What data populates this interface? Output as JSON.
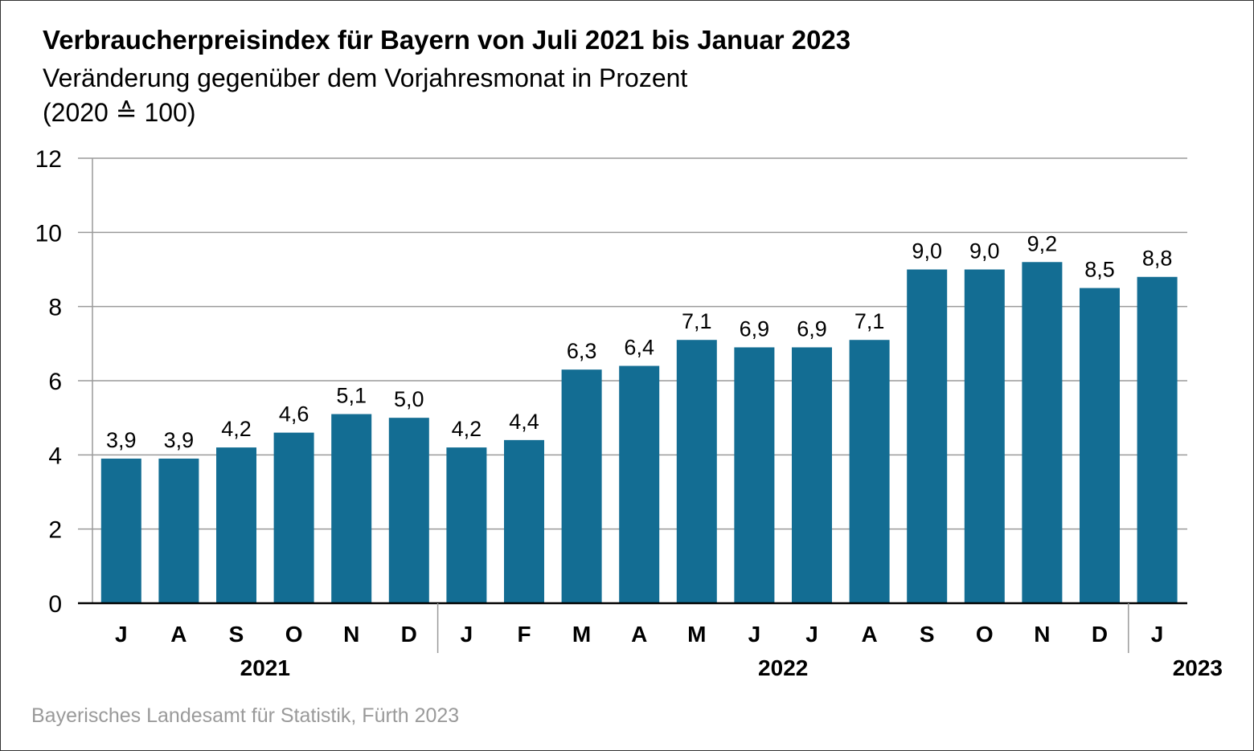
{
  "colors": {
    "bar": "#136d93",
    "grid": "#9a9a9a",
    "axis": "#000000",
    "source": "#9a9a9a"
  },
  "chart_data": {
    "type": "bar",
    "title": "Verbraucherpreisindex für Bayern von Juli 2021 bis Januar 2023",
    "subtitle": "Veränderung gegenüber dem Vorjahresmonat in Prozent",
    "subtitle2": "(2020 ≙ 100)",
    "categories": [
      "J",
      "A",
      "S",
      "O",
      "N",
      "D",
      "J",
      "F",
      "M",
      "A",
      "M",
      "J",
      "J",
      "A",
      "S",
      "O",
      "N",
      "D",
      "J"
    ],
    "values": [
      3.9,
      3.9,
      4.2,
      4.6,
      5.1,
      5.0,
      4.2,
      4.4,
      6.3,
      6.4,
      7.1,
      6.9,
      6.9,
      7.1,
      9.0,
      9.0,
      9.2,
      8.5,
      8.8
    ],
    "value_labels": [
      "3,9",
      "3,9",
      "4,2",
      "4,6",
      "5,1",
      "5,0",
      "4,2",
      "4,4",
      "6,3",
      "6,4",
      "7,1",
      "6,9",
      "6,9",
      "7,1",
      "9,0",
      "9,0",
      "9,2",
      "8,5",
      "8,8"
    ],
    "year_groups": [
      {
        "label": "2021",
        "start": 0,
        "end": 5
      },
      {
        "label": "2022",
        "start": 6,
        "end": 17
      },
      {
        "label": "2023",
        "start": 18,
        "end": 18
      }
    ],
    "ylim": [
      0,
      12
    ],
    "yticks": [
      0,
      2,
      4,
      6,
      8,
      10,
      12
    ],
    "xlabel": "",
    "ylabel": "",
    "grid": true,
    "legend": "none"
  },
  "source": "Bayerisches Landesamt für Statistik, Fürth 2023"
}
